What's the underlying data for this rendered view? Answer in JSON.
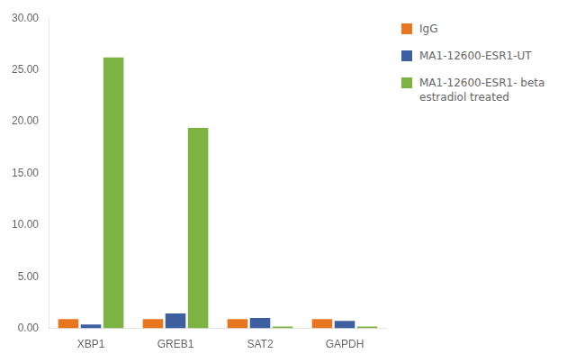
{
  "chart_data": {
    "type": "bar",
    "categories": [
      "XBP1",
      "GREB1",
      "SAT2",
      "GAPDH"
    ],
    "series": [
      {
        "name": "IgG",
        "color": "#E8761E",
        "values": [
          0.9,
          0.9,
          0.9,
          0.9
        ]
      },
      {
        "name": "MA1-12600-ESR1-UT",
        "color": "#3D5FA0",
        "values": [
          0.38,
          1.45,
          1.0,
          0.72
        ]
      },
      {
        "name": "MA1-12600-ESR1- beta\nestradiol treated",
        "color": "#7CB342",
        "values": [
          26.2,
          19.4,
          0.18,
          0.18
        ]
      }
    ],
    "ylim": [
      0,
      30
    ],
    "yticks": [
      {
        "value": 0,
        "label": "0.00"
      },
      {
        "value": 5,
        "label": "5.00"
      },
      {
        "value": 10,
        "label": "10.00"
      },
      {
        "value": 15,
        "label": "15.00"
      },
      {
        "value": 20,
        "label": "20.00"
      },
      {
        "value": 25,
        "label": "25.00"
      },
      {
        "value": 30,
        "label": "30.00"
      }
    ],
    "grid": false,
    "legend": "right"
  }
}
